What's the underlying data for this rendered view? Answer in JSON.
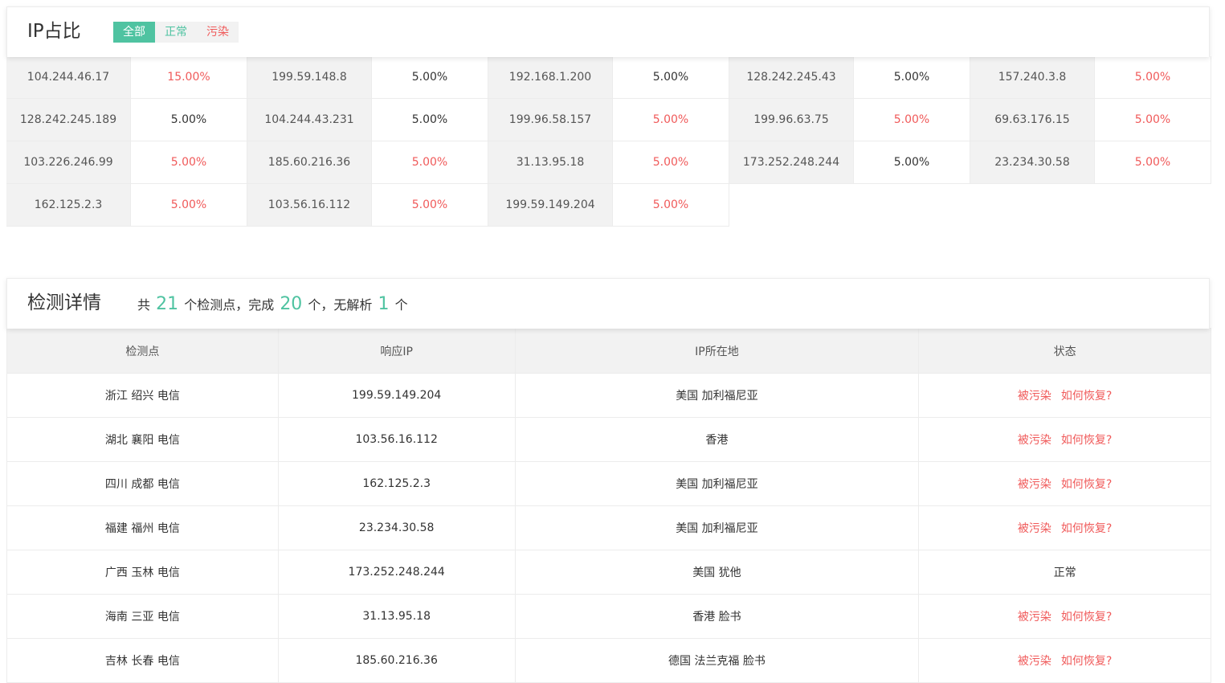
{
  "ip_ratio": {
    "title": "IP占比",
    "filters": [
      "全部",
      "正常",
      "污染"
    ],
    "columns": [
      [
        {
          "ip": "104.244.46.17",
          "pct": "15.00%",
          "polluted": true
        },
        {
          "ip": "128.242.245.189",
          "pct": "5.00%",
          "polluted": false
        },
        {
          "ip": "103.226.246.99",
          "pct": "5.00%",
          "polluted": true
        },
        {
          "ip": "162.125.2.3",
          "pct": "5.00%",
          "polluted": true
        }
      ],
      [
        {
          "ip": "199.59.148.8",
          "pct": "5.00%",
          "polluted": false
        },
        {
          "ip": "104.244.43.231",
          "pct": "5.00%",
          "polluted": false
        },
        {
          "ip": "185.60.216.36",
          "pct": "5.00%",
          "polluted": true
        },
        {
          "ip": "103.56.16.112",
          "pct": "5.00%",
          "polluted": true
        }
      ],
      [
        {
          "ip": "192.168.1.200",
          "pct": "5.00%",
          "polluted": false
        },
        {
          "ip": "199.96.58.157",
          "pct": "5.00%",
          "polluted": true
        },
        {
          "ip": "31.13.95.18",
          "pct": "5.00%",
          "polluted": true
        },
        {
          "ip": "199.59.149.204",
          "pct": "5.00%",
          "polluted": true
        }
      ],
      [
        {
          "ip": "128.242.245.43",
          "pct": "5.00%",
          "polluted": false
        },
        {
          "ip": "199.96.63.75",
          "pct": "5.00%",
          "polluted": true
        },
        {
          "ip": "173.252.248.244",
          "pct": "5.00%",
          "polluted": false
        }
      ],
      [
        {
          "ip": "157.240.3.8",
          "pct": "5.00%",
          "polluted": true
        },
        {
          "ip": "69.63.176.15",
          "pct": "5.00%",
          "polluted": true
        },
        {
          "ip": "23.234.30.58",
          "pct": "5.00%",
          "polluted": true
        }
      ]
    ]
  },
  "detail": {
    "title": "检测详情",
    "summary": {
      "prefix": "共",
      "total": "21",
      "mid1": "个检测点，完成",
      "done": "20",
      "mid2": "个，无解析",
      "none": "1",
      "suffix": "个"
    },
    "headers": [
      "检测点",
      "响应IP",
      "IP所在地",
      "状态"
    ],
    "recover_label": "如何恢复?",
    "rows": [
      {
        "point": "浙江 绍兴 电信",
        "ip": "199.59.149.204",
        "location": "美国 加利福尼亚",
        "status": "被污染",
        "polluted": true
      },
      {
        "point": "湖北 襄阳 电信",
        "ip": "103.56.16.112",
        "location": "香港",
        "status": "被污染",
        "polluted": true
      },
      {
        "point": "四川 成都 电信",
        "ip": "162.125.2.3",
        "location": "美国 加利福尼亚",
        "status": "被污染",
        "polluted": true
      },
      {
        "point": "福建 福州 电信",
        "ip": "23.234.30.58",
        "location": "美国 加利福尼亚",
        "status": "被污染",
        "polluted": true
      },
      {
        "point": "广西 玉林 电信",
        "ip": "173.252.248.244",
        "location": "美国 犹他",
        "status": "正常",
        "polluted": false
      },
      {
        "point": "海南 三亚 电信",
        "ip": "31.13.95.18",
        "location": "香港 脸书",
        "status": "被污染",
        "polluted": true
      },
      {
        "point": "吉林 长春 电信",
        "ip": "185.60.216.36",
        "location": "德国 法兰克福 脸书",
        "status": "被污染",
        "polluted": true
      }
    ]
  }
}
